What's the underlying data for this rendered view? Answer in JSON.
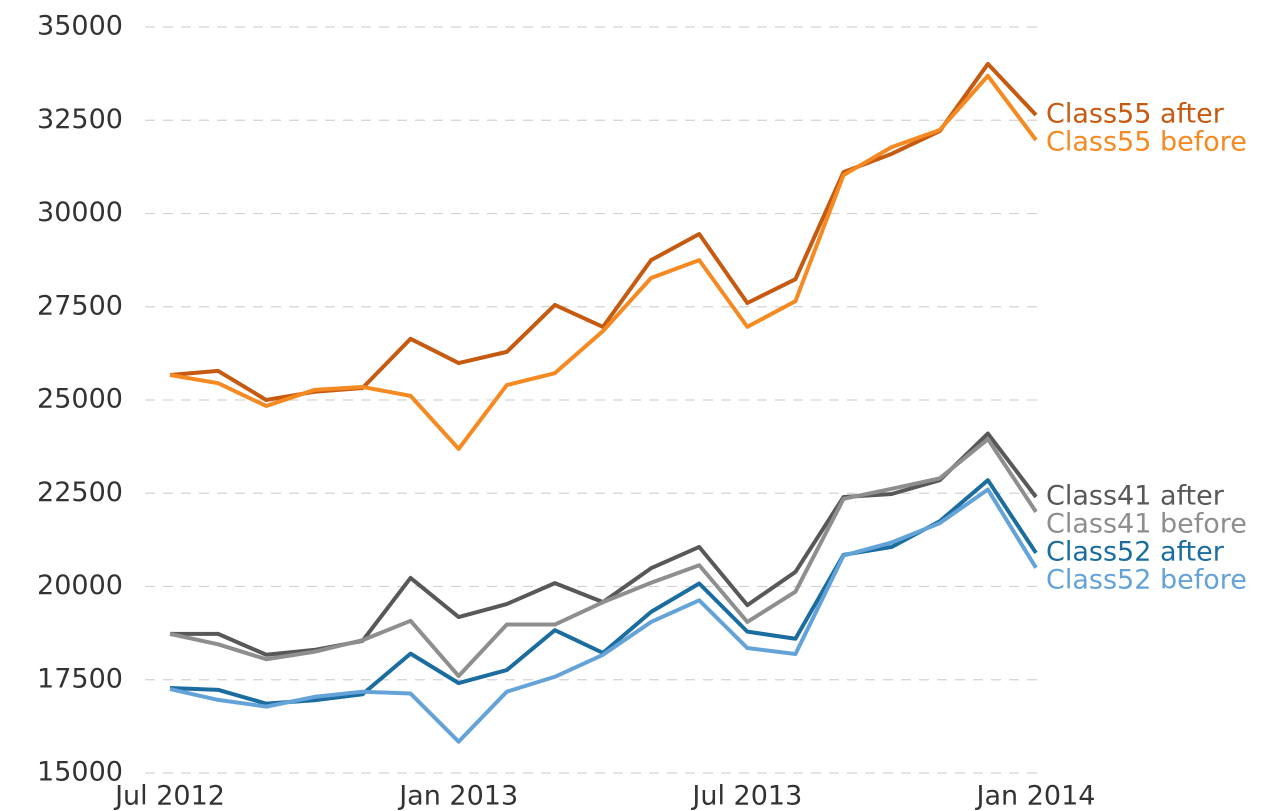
{
  "chart_data": {
    "type": "line",
    "x": [
      "2012-07",
      "2012-08",
      "2012-09",
      "2012-10",
      "2012-11",
      "2012-12",
      "2013-01",
      "2013-02",
      "2013-03",
      "2013-04",
      "2013-05",
      "2013-06",
      "2013-07",
      "2013-08",
      "2013-09",
      "2013-10",
      "2013-11",
      "2013-12",
      "2014-01"
    ],
    "series": [
      {
        "name": "Class55 after",
        "color": "#c65a11",
        "values": [
          25670,
          25780,
          25000,
          25220,
          25320,
          26640,
          25990,
          26290,
          27550,
          26960,
          28750,
          29450,
          27600,
          28240,
          31110,
          31600,
          32210,
          34010,
          32640
        ]
      },
      {
        "name": "Class55 before",
        "color": "#f58a22",
        "values": [
          25670,
          25450,
          24840,
          25270,
          25350,
          25110,
          23690,
          25400,
          25720,
          26850,
          28270,
          28750,
          26960,
          27650,
          31030,
          31780,
          32240,
          33690,
          31970
        ]
      },
      {
        "name": "Class41 after",
        "color": "#585858",
        "values": [
          18730,
          18730,
          18170,
          18300,
          18540,
          20230,
          19180,
          19530,
          20090,
          19580,
          20490,
          21060,
          19500,
          20390,
          22400,
          22480,
          22850,
          24100,
          22400
        ]
      },
      {
        "name": "Class41 before",
        "color": "#8e8e8e",
        "values": [
          18730,
          18450,
          18050,
          18250,
          18560,
          19080,
          17600,
          18980,
          18980,
          19580,
          20100,
          20570,
          19050,
          19860,
          22350,
          22620,
          22900,
          23950,
          22000
        ]
      },
      {
        "name": "Class52 after",
        "color": "#1b6d9f",
        "values": [
          17280,
          17230,
          16860,
          16950,
          17110,
          18200,
          17410,
          17760,
          18830,
          18220,
          19320,
          20080,
          18790,
          18600,
          20850,
          21060,
          21750,
          22850,
          20900
        ]
      },
      {
        "name": "Class52 before",
        "color": "#64a3d8",
        "values": [
          17250,
          16960,
          16780,
          17040,
          17180,
          17130,
          15840,
          17180,
          17580,
          18170,
          19050,
          19630,
          18350,
          18190,
          20830,
          21180,
          21700,
          22600,
          20500
        ]
      }
    ],
    "xticks": [
      {
        "value": "2012-07",
        "label": "Jul 2012"
      },
      {
        "value": "2013-01",
        "label": "Jan 2013"
      },
      {
        "value": "2013-07",
        "label": "Jul 2013"
      },
      {
        "value": "2014-01",
        "label": "Jan 2014"
      }
    ],
    "ylim": [
      15000,
      35000
    ],
    "yticks": [
      15000,
      17500,
      20000,
      22500,
      25000,
      27500,
      30000,
      32500,
      35000
    ],
    "grid": true
  }
}
